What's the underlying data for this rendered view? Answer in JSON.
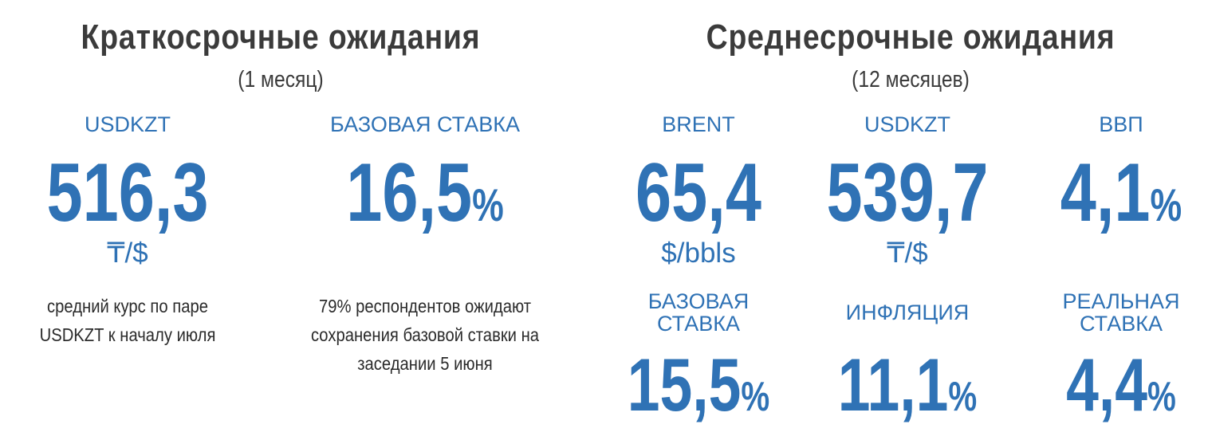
{
  "short_term": {
    "title": "Краткосрочные ожидания",
    "subtitle": "(1 месяц)",
    "items": [
      {
        "label": "USDKZT",
        "value": "516,3",
        "unit": "₸/$",
        "note": [
          "средний курс по паре",
          "USDKZT к началу июля"
        ]
      },
      {
        "label": "БАЗОВАЯ СТАВКА",
        "value": "16,5",
        "suffix": "%",
        "note": [
          "79% респондентов ожидают",
          "сохранения базовой ставки на",
          "заседании 5 июня"
        ]
      }
    ]
  },
  "medium_term": {
    "title": "Среднесрочные ожидания",
    "subtitle": "(12 месяцев)",
    "items": [
      {
        "label": "BRENT",
        "value": "65,4",
        "unit": "$/bbls"
      },
      {
        "label": "USDKZT",
        "value": "539,7",
        "unit": "₸/$"
      },
      {
        "label": "ВВП",
        "value": "4,1",
        "suffix": "%"
      },
      {
        "label": [
          "БАЗОВАЯ",
          "СТАВКА"
        ],
        "value": "15,5",
        "suffix": "%"
      },
      {
        "label": "ИНФЛЯЦИЯ",
        "value": "11,1",
        "suffix": "%"
      },
      {
        "label": [
          "РЕАЛЬНАЯ",
          "СТАВКА"
        ],
        "value": "4,4",
        "suffix": "%"
      }
    ]
  }
}
